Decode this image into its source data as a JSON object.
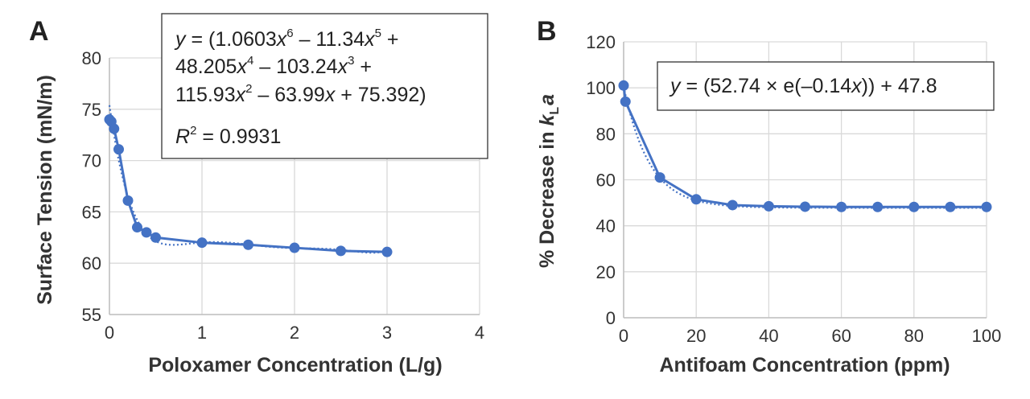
{
  "chart_data": [
    {
      "panel_letter": "A",
      "type": "scatter",
      "xlabel": "Poloxamer Concentration (L/g)",
      "ylabel": "Surface Tension (mN/m)",
      "xlim": [
        0,
        4
      ],
      "ylim": [
        55,
        80
      ],
      "xticks": [
        "0",
        "1",
        "2",
        "3",
        "4"
      ],
      "yticks": [
        "55",
        "60",
        "65",
        "70",
        "75",
        "80"
      ],
      "series": [
        {
          "name": "Surface tension",
          "color": "#4472C4",
          "x": [
            0.0,
            0.02,
            0.05,
            0.1,
            0.2,
            0.3,
            0.4,
            0.5,
            1.0,
            1.5,
            2.0,
            2.5,
            3.0
          ],
          "y": [
            74.0,
            73.8,
            73.1,
            71.1,
            66.1,
            63.5,
            63.0,
            62.5,
            62.0,
            61.8,
            61.5,
            61.2,
            61.1
          ]
        }
      ],
      "trendline": {
        "type": "polynomial",
        "coefficients": [
          1.0603,
          -11.34,
          48.205,
          -103.24,
          115.93,
          -63.99,
          75.392
        ],
        "x_range": [
          0,
          3
        ],
        "style": "dotted"
      },
      "equation_box": {
        "y_part": "y",
        "eq_open": " = (1.0603",
        "x1": "x",
        "p6": "6",
        "t1": " – 11.34",
        "x2": "x",
        "p5": "5",
        "t1_end": " +",
        "l2a": "48.205",
        "x3": "x",
        "p4": "4",
        "l2b": " – 103.24",
        "x4": "x",
        "p3": "3",
        "l2_end": " +",
        "l3a": "115.93",
        "x5": "x",
        "p2": "2",
        "l3b": " – 63.99",
        "x6": "x",
        "l3c": " + 75.392)",
        "r_label": "R",
        "r_sup": "2",
        "r_value": " = 0.9931"
      }
    },
    {
      "panel_letter": "B",
      "type": "scatter",
      "xlabel": "Antifoam Concentration (ppm)",
      "ylabel_prefix": "% Decrease in ",
      "ylabel_k": "k",
      "ylabel_sub": "L",
      "ylabel_a": "a",
      "xlim": [
        0,
        100
      ],
      "ylim": [
        0,
        120
      ],
      "xticks": [
        "0",
        "20",
        "40",
        "60",
        "80",
        "100"
      ],
      "yticks": [
        "0",
        "20",
        "40",
        "60",
        "80",
        "100",
        "120"
      ],
      "series": [
        {
          "name": "% Decrease in kLa",
          "color": "#4472C4",
          "x": [
            0,
            0.5,
            10,
            20,
            30,
            40,
            50,
            60,
            70,
            80,
            90,
            100
          ],
          "y": [
            101,
            94,
            61,
            51.5,
            49,
            48.5,
            48.3,
            48.2,
            48.2,
            48.2,
            48.2,
            48.2
          ]
        }
      ],
      "trendline": {
        "type": "exponential",
        "a": 52.74,
        "b": -0.14,
        "c": 47.8,
        "x_range": [
          0,
          100
        ],
        "style": "dotted"
      },
      "equation_box": {
        "y_part": "y",
        "eq_open": " = (52.74 × e(–0.14",
        "x1": "x",
        "eq_close": ")) + 47.8"
      }
    }
  ]
}
